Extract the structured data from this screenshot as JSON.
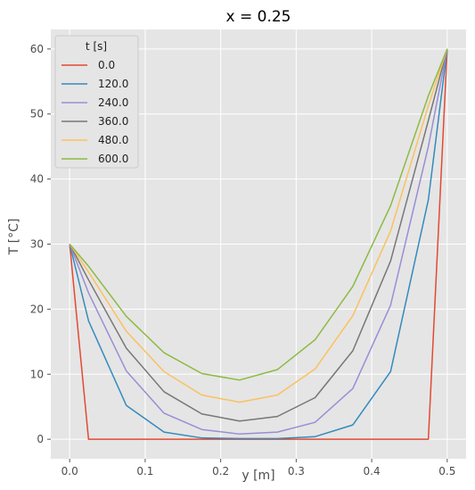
{
  "chart_data": {
    "type": "line",
    "title": "x = 0.25",
    "xlabel": "y [m]",
    "ylabel": "T [°C]",
    "xlim": [
      -0.025,
      0.525
    ],
    "ylim": [
      -3,
      63
    ],
    "xticks": [
      0.0,
      0.1,
      0.2,
      0.3,
      0.4,
      0.5
    ],
    "xtick_labels": [
      "0.0",
      "0.1",
      "0.2",
      "0.3",
      "0.4",
      "0.5"
    ],
    "yticks": [
      0,
      10,
      20,
      30,
      40,
      50,
      60
    ],
    "ytick_labels": [
      "0",
      "10",
      "20",
      "30",
      "40",
      "50",
      "60"
    ],
    "grid": true,
    "style": "ggplot",
    "legend": {
      "title": "t [s]",
      "placement": "top-left"
    },
    "x": [
      0.0,
      0.025,
      0.075,
      0.125,
      0.175,
      0.225,
      0.275,
      0.325,
      0.375,
      0.425,
      0.475,
      0.5
    ],
    "series": [
      {
        "name": "0.0",
        "color": "#E24A33",
        "values": [
          30,
          0,
          0,
          0,
          0,
          0,
          0,
          0,
          0,
          0,
          0,
          60
        ]
      },
      {
        "name": "120.0",
        "color": "#348ABD",
        "values": [
          30,
          18.2,
          5.2,
          1.1,
          0.2,
          0.1,
          0.1,
          0.4,
          2.2,
          10.4,
          36.8,
          60
        ]
      },
      {
        "name": "240.0",
        "color": "#988ED5",
        "values": [
          30,
          22.5,
          10.5,
          4.0,
          1.5,
          0.8,
          1.1,
          2.6,
          7.8,
          20.6,
          45.0,
          60
        ]
      },
      {
        "name": "360.0",
        "color": "#777777",
        "values": [
          30,
          24.5,
          14.0,
          7.3,
          3.9,
          2.8,
          3.5,
          6.4,
          13.6,
          27.4,
          49.0,
          60
        ]
      },
      {
        "name": "480.0",
        "color": "#FBC15E",
        "values": [
          30,
          25.7,
          16.6,
          10.4,
          6.8,
          5.7,
          6.8,
          10.8,
          19.0,
          32.0,
          51.3,
          60
        ]
      },
      {
        "name": "600.0",
        "color": "#8EBA42",
        "values": [
          30,
          26.6,
          18.9,
          13.3,
          10.1,
          9.1,
          10.7,
          15.3,
          23.5,
          35.9,
          52.8,
          60
        ]
      }
    ]
  }
}
